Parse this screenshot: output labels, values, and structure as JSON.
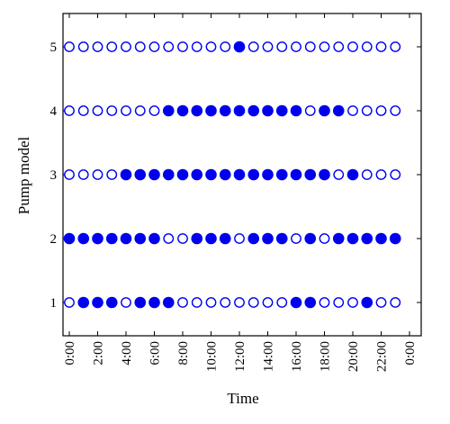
{
  "chart_data": {
    "type": "scatter",
    "title": "",
    "xlabel": "Time",
    "ylabel": "Pump model",
    "x_ticks": [
      "0:00",
      "2:00",
      "4:00",
      "6:00",
      "8:00",
      "10:00",
      "12:00",
      "14:00",
      "16:00",
      "18:00",
      "20:00",
      "22:00",
      "0:00"
    ],
    "xlim": [
      0,
      24
    ],
    "ylim": [
      0.5,
      5.5
    ],
    "y_ticks": [
      1,
      2,
      3,
      4,
      5
    ],
    "x_hours": [
      0,
      1,
      2,
      3,
      4,
      5,
      6,
      7,
      8,
      9,
      10,
      11,
      12,
      13,
      14,
      15,
      16,
      17,
      18,
      19,
      20,
      21,
      22,
      23
    ],
    "marker_color": "#0000ee",
    "legend": "filled = pump on, open = pump off (no legend shown)",
    "series": [
      {
        "pump": 1,
        "states": [
          0,
          1,
          1,
          1,
          0,
          1,
          1,
          1,
          0,
          0,
          0,
          0,
          0,
          0,
          0,
          0,
          1,
          1,
          0,
          0,
          0,
          1,
          0,
          0
        ]
      },
      {
        "pump": 2,
        "states": [
          1,
          1,
          1,
          1,
          1,
          1,
          1,
          0,
          0,
          1,
          1,
          1,
          0,
          1,
          1,
          1,
          0,
          1,
          0,
          1,
          1,
          1,
          1,
          1
        ]
      },
      {
        "pump": 3,
        "states": [
          0,
          0,
          0,
          0,
          1,
          1,
          1,
          1,
          1,
          1,
          1,
          1,
          1,
          1,
          1,
          1,
          1,
          1,
          1,
          0,
          1,
          0,
          0,
          0
        ]
      },
      {
        "pump": 4,
        "states": [
          0,
          0,
          0,
          0,
          0,
          0,
          0,
          1,
          1,
          1,
          1,
          1,
          1,
          1,
          1,
          1,
          1,
          0,
          1,
          1,
          0,
          0,
          0,
          0
        ]
      },
      {
        "pump": 5,
        "states": [
          0,
          0,
          0,
          0,
          0,
          0,
          0,
          0,
          0,
          0,
          0,
          0,
          1,
          0,
          0,
          0,
          0,
          0,
          0,
          0,
          0,
          0,
          0,
          0
        ]
      }
    ]
  }
}
